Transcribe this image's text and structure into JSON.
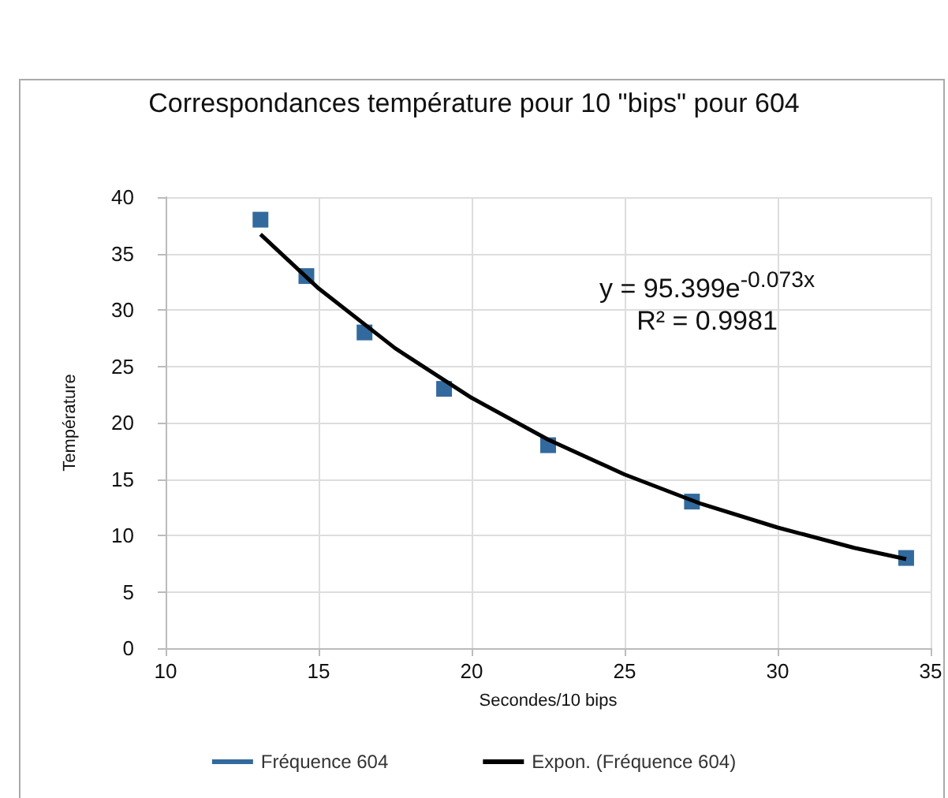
{
  "chart_data": {
    "type": "scatter",
    "title": "Correspondances température pour 10 \"bips\" pour 604",
    "xlabel": "Secondes/10 bips",
    "ylabel": "Température",
    "annotations": [
      "y = 95.399e$^{-0.073x}$",
      "R² = 0.9981"
    ],
    "xlim": [
      10,
      35
    ],
    "xticks": [
      10,
      15,
      20,
      25,
      30,
      35
    ],
    "ylim": [
      0,
      40
    ],
    "yticks": [
      0,
      5,
      10,
      15,
      20,
      25,
      30,
      35,
      40
    ],
    "grid": true,
    "legend": "bottom",
    "series": [
      {
        "name": "Fréquence 604",
        "marker": "square",
        "color": "#004586",
        "x": [
          13.1,
          14.6,
          16.5,
          19.1,
          22.5,
          27.2,
          34.2
        ],
        "values": [
          38,
          33,
          28,
          23,
          18,
          13,
          8
        ]
      },
      {
        "name": "Expon. (Fréquence 604)",
        "type": "line",
        "marker": "none",
        "color": "#000000",
        "line_style": "solid",
        "x": [
          13.1,
          15,
          17.5,
          20,
          22.5,
          25,
          27.5,
          30,
          32.5,
          34.2
        ],
        "values": [
          36.7,
          31.9,
          26.6,
          22.2,
          18.5,
          15.4,
          12.8,
          10.7,
          8.9,
          7.9
        ]
      }
    ]
  }
}
